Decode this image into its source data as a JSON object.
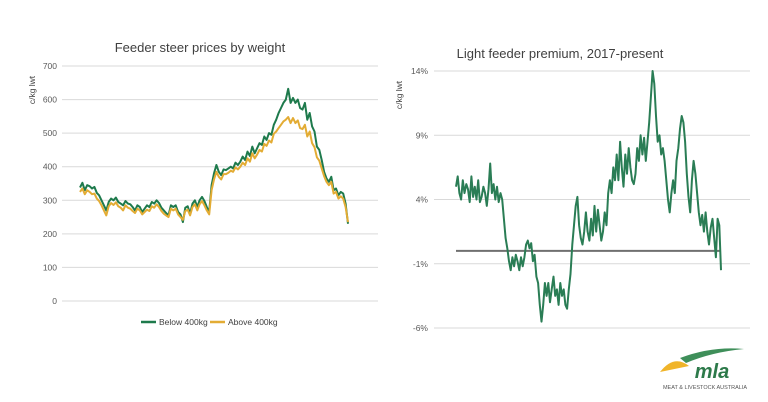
{
  "chart_data": [
    {
      "type": "line",
      "title": "Feeder steer prices by weight",
      "ylabel": "c/kg lwt",
      "xlabel": "",
      "ylim": [
        0,
        700
      ],
      "yticks": [
        "0",
        "100",
        "200",
        "300",
        "400",
        "500",
        "600",
        "700"
      ],
      "grid": true,
      "legend": "bottom",
      "series": [
        {
          "name": "Below 400kg",
          "color": "#1e7a4c",
          "values": [
            338,
            352,
            330,
            345,
            342,
            335,
            340,
            322,
            315,
            300,
            285,
            270,
            295,
            305,
            300,
            308,
            295,
            290,
            285,
            298,
            290,
            288,
            280,
            270,
            285,
            280,
            265,
            275,
            285,
            280,
            295,
            290,
            300,
            292,
            278,
            270,
            262,
            255,
            285,
            280,
            285,
            265,
            258,
            235,
            278,
            282,
            260,
            290,
            300,
            280,
            300,
            310,
            298,
            280,
            265,
            345,
            380,
            405,
            385,
            375,
            392,
            390,
            395,
            400,
            395,
            412,
            405,
            415,
            430,
            420,
            445,
            432,
            460,
            440,
            455,
            470,
            465,
            490,
            480,
            500,
            495,
            525,
            540,
            560,
            575,
            590,
            600,
            632,
            590,
            605,
            590,
            600,
            575,
            570,
            590,
            540,
            560,
            520,
            505,
            460,
            450,
            420,
            385,
            365,
            355,
            370,
            330,
            335,
            315,
            325,
            320,
            290,
            230
          ]
        },
        {
          "name": "Above 400kg",
          "color": "#e3ac34",
          "values": [
            325,
            335,
            318,
            330,
            325,
            318,
            320,
            305,
            298,
            285,
            270,
            255,
            282,
            292,
            286,
            294,
            282,
            278,
            270,
            285,
            278,
            275,
            268,
            262,
            275,
            270,
            258,
            265,
            272,
            268,
            282,
            278,
            288,
            280,
            268,
            260,
            255,
            250,
            275,
            270,
            275,
            258,
            250,
            242,
            268,
            272,
            255,
            280,
            288,
            270,
            288,
            298,
            285,
            270,
            258,
            330,
            362,
            385,
            370,
            362,
            378,
            378,
            382,
            388,
            385,
            398,
            392,
            400,
            412,
            405,
            425,
            415,
            440,
            425,
            436,
            450,
            445,
            468,
            462,
            478,
            472,
            498,
            505,
            515,
            525,
            535,
            540,
            548,
            530,
            545,
            530,
            538,
            515,
            512,
            525,
            490,
            505,
            470,
            458,
            428,
            418,
            395,
            372,
            355,
            345,
            355,
            320,
            325,
            305,
            312,
            305,
            280,
            235
          ]
        }
      ]
    },
    {
      "type": "line",
      "title": "Light feeder premium, 2017-present",
      "ylabel": "c/kg lwt",
      "xlabel": "",
      "ylim": [
        -6,
        14
      ],
      "yticks": [
        "-6%",
        "-1%",
        "4%",
        "9%",
        "14%"
      ],
      "grid": true,
      "reference_line": 0,
      "series": [
        {
          "color": "#2a7d55",
          "values": [
            5.0,
            5.8,
            4.5,
            4.0,
            5.5,
            4.5,
            5.2,
            4.8,
            3.8,
            5.8,
            4.2,
            5.0,
            4.0,
            5.5,
            3.8,
            4.2,
            5.0,
            4.5,
            3.5,
            4.8,
            6.8,
            4.5,
            5.2,
            4.0,
            5.0,
            3.8,
            4.5,
            4.0,
            2.5,
            1.0,
            0.2,
            -0.8,
            -1.5,
            -0.5,
            -1.2,
            -0.3,
            -0.8,
            -1.5,
            -0.5,
            -1.2,
            -0.5,
            0.5,
            0.8,
            0.2,
            0.6,
            -0.8,
            -0.3,
            -2.0,
            -2.5,
            -4.2,
            -5.5,
            -4.2,
            -2.5,
            -3.5,
            -2.5,
            -4.0,
            -3.0,
            -2.0,
            -3.5,
            -3.0,
            -4.2,
            -2.5,
            -3.5,
            -3.0,
            -4.2,
            -4.5,
            -3.0,
            -1.8,
            0.5,
            2.0,
            3.5,
            4.2,
            2.0,
            1.0,
            0.5,
            1.5,
            3.0,
            1.5,
            0.8,
            2.5,
            1.2,
            3.5,
            1.5,
            3.2,
            2.0,
            0.8,
            1.5,
            3.0,
            2.0,
            4.5,
            5.5,
            4.5,
            6.5,
            5.5,
            7.5,
            5.5,
            8.5,
            6.5,
            5.0,
            7.5,
            6.0,
            8.0,
            6.5,
            5.5,
            5.2,
            6.0,
            8.0,
            7.0,
            9.0,
            7.5,
            8.8,
            7.0,
            8.5,
            10.0,
            12.0,
            14.0,
            13.0,
            10.5,
            8.5,
            9.0,
            7.5,
            8.0,
            7.0,
            5.5,
            4.0,
            3.0,
            4.5,
            5.5,
            4.5,
            7.0,
            8.0,
            9.5,
            10.5,
            10.0,
            8.5,
            6.0,
            4.2,
            3.0,
            5.5,
            7.0,
            6.0,
            4.5,
            3.0,
            2.0,
            2.8,
            1.5,
            3.0,
            1.5,
            0.5,
            1.8,
            2.5,
            1.0,
            -0.5,
            2.5,
            2.0,
            -1.5
          ]
        }
      ]
    }
  ],
  "legend_items": [
    "Below 400kg",
    "Above 400kg"
  ],
  "logo": {
    "text": "mla",
    "tagline": "MEAT & LIVESTOCK AUSTRALIA"
  }
}
